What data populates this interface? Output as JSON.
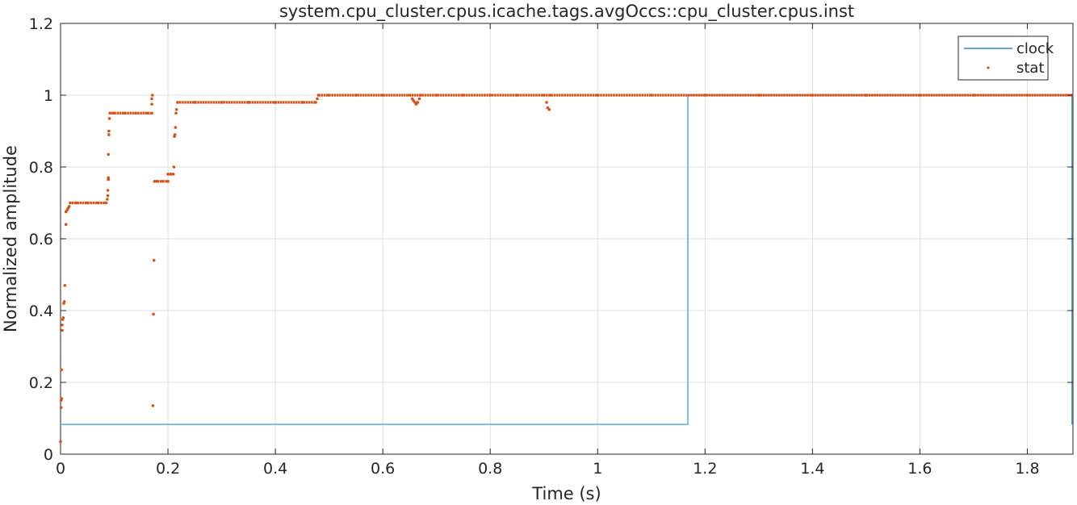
{
  "chart_data": {
    "type": "line",
    "title": "system.cpu_cluster.cpus.icache.tags.avgOccs::cpu_cluster.cpus.inst",
    "xlabel": "Time (s)",
    "ylabel": "Normalized amplitude",
    "xlim": [
      0,
      1.885
    ],
    "ylim": [
      0,
      1.2
    ],
    "xticks": [
      0,
      0.2,
      0.4,
      0.6,
      0.8,
      1,
      1.2,
      1.4,
      1.6,
      1.8
    ],
    "xtick_labels": [
      "0",
      "0.2",
      "0.4",
      "0.6",
      "0.8",
      "1",
      "1.2",
      "1.4",
      "1.6",
      "1.8"
    ],
    "yticks": [
      0,
      0.2,
      0.4,
      0.6,
      0.8,
      1,
      1.2
    ],
    "ytick_labels": [
      "0",
      "0.2",
      "0.4",
      "0.6",
      "0.8",
      "1",
      "1.2"
    ],
    "grid": true,
    "legend_position": "top-right",
    "series": [
      {
        "name": "clock",
        "style": "line",
        "color": "#0072BD",
        "x": [
          0,
          1.168,
          1.168,
          1.883,
          1.883
        ],
        "y": [
          0.083,
          0.083,
          1.0,
          1.0,
          0.083
        ]
      },
      {
        "name": "stat",
        "style": "markers",
        "color": "#D95319",
        "points": [
          [
            0.0,
            0.035
          ],
          [
            0.001,
            0.13
          ],
          [
            0.001,
            0.15
          ],
          [
            0.002,
            0.155
          ],
          [
            0.002,
            0.235
          ],
          [
            0.003,
            0.345
          ],
          [
            0.003,
            0.36
          ],
          [
            0.004,
            0.375
          ],
          [
            0.005,
            0.38
          ],
          [
            0.006,
            0.42
          ],
          [
            0.007,
            0.425
          ],
          [
            0.008,
            0.47
          ],
          [
            0.01,
            0.64
          ],
          [
            0.01,
            0.675
          ],
          [
            0.012,
            0.68
          ],
          [
            0.014,
            0.685
          ],
          [
            0.016,
            0.69
          ],
          [
            0.018,
            0.7
          ],
          [
            0.03,
            0.7
          ],
          [
            0.05,
            0.7
          ],
          [
            0.07,
            0.7
          ],
          [
            0.085,
            0.7
          ],
          [
            0.087,
            0.71
          ],
          [
            0.088,
            0.72
          ],
          [
            0.088,
            0.735
          ],
          [
            0.089,
            0.765
          ],
          [
            0.089,
            0.77
          ],
          [
            0.089,
            0.835
          ],
          [
            0.09,
            0.89
          ],
          [
            0.09,
            0.9
          ],
          [
            0.091,
            0.935
          ],
          [
            0.092,
            0.95
          ],
          [
            0.1,
            0.95
          ],
          [
            0.12,
            0.95
          ],
          [
            0.14,
            0.95
          ],
          [
            0.16,
            0.95
          ],
          [
            0.17,
            0.95
          ],
          [
            0.17,
            0.975
          ],
          [
            0.17,
            0.99
          ],
          [
            0.171,
            1.0
          ],
          [
            0.172,
            0.135
          ],
          [
            0.173,
            0.39
          ],
          [
            0.174,
            0.54
          ],
          [
            0.175,
            0.76
          ],
          [
            0.18,
            0.76
          ],
          [
            0.19,
            0.76
          ],
          [
            0.2,
            0.76
          ],
          [
            0.2,
            0.78
          ],
          [
            0.205,
            0.78
          ],
          [
            0.21,
            0.78
          ],
          [
            0.211,
            0.8
          ],
          [
            0.212,
            0.885
          ],
          [
            0.213,
            0.89
          ],
          [
            0.214,
            0.91
          ],
          [
            0.215,
            0.95
          ],
          [
            0.216,
            0.96
          ],
          [
            0.218,
            0.98
          ],
          [
            0.25,
            0.98
          ],
          [
            0.3,
            0.98
          ],
          [
            0.35,
            0.98
          ],
          [
            0.4,
            0.98
          ],
          [
            0.45,
            0.98
          ],
          [
            0.475,
            0.98
          ],
          [
            0.478,
            0.99
          ],
          [
            0.48,
            1.0
          ],
          [
            0.5,
            1.0
          ],
          [
            0.55,
            1.0
          ],
          [
            0.6,
            1.0
          ],
          [
            0.65,
            1.0
          ],
          [
            0.655,
            0.99
          ],
          [
            0.657,
            0.985
          ],
          [
            0.66,
            0.98
          ],
          [
            0.662,
            0.975
          ],
          [
            0.665,
            0.98
          ],
          [
            0.668,
            0.99
          ],
          [
            0.67,
            1.0
          ],
          [
            0.7,
            1.0
          ],
          [
            0.75,
            1.0
          ],
          [
            0.8,
            1.0
          ],
          [
            0.85,
            1.0
          ],
          [
            0.9,
            1.0
          ],
          [
            0.905,
            0.98
          ],
          [
            0.907,
            0.965
          ],
          [
            0.91,
            0.96
          ],
          [
            0.912,
            1.0
          ],
          [
            1.0,
            1.0
          ],
          [
            1.1,
            1.0
          ],
          [
            1.2,
            1.0
          ],
          [
            1.3,
            1.0
          ],
          [
            1.4,
            1.0
          ],
          [
            1.5,
            1.0
          ],
          [
            1.6,
            1.0
          ],
          [
            1.7,
            1.0
          ],
          [
            1.8,
            1.0
          ],
          [
            1.883,
            1.0
          ]
        ],
        "plateaus": [
          [
            0.016,
            0.086,
            0.7
          ],
          [
            0.09,
            0.17,
            0.95
          ],
          [
            0.175,
            0.2,
            0.76
          ],
          [
            0.198,
            0.21,
            0.78
          ],
          [
            0.216,
            0.476,
            0.98
          ],
          [
            0.48,
            1.883,
            1.0
          ]
        ]
      }
    ]
  }
}
